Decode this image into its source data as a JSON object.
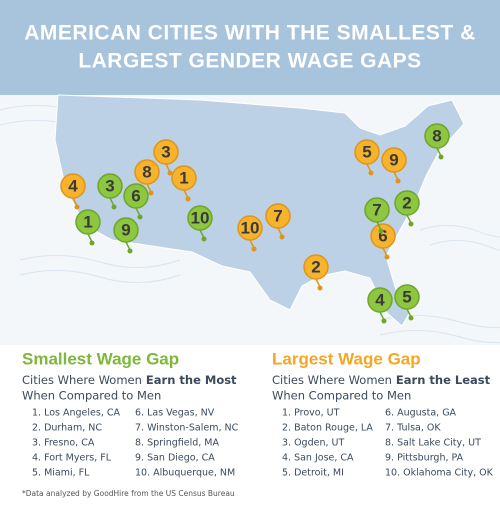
{
  "header": {
    "title_lines": [
      "AMERICAN CITIES WITH THE SMALLEST &",
      "LARGEST GENDER WAGE GAPS"
    ]
  },
  "map": {
    "smallest_pins": [
      "1",
      "2",
      "3",
      "4",
      "5",
      "6",
      "7",
      "8",
      "9",
      "10"
    ],
    "largest_pins": [
      "1",
      "2",
      "3",
      "4",
      "5",
      "6",
      "7",
      "8",
      "9",
      "10"
    ]
  },
  "lists": [
    {
      "heading": "Smallest Wage Gap",
      "subtitle": [
        "Cities Where Women",
        "Earn the Most",
        "When Compared to Men"
      ],
      "cities": [
        "1. Los Angeles, CA",
        "2. Durham, NC",
        "3. Fresno, CA",
        "4. Fort Myers, FL",
        "5. Miami, FL",
        "6. Las Vegas, NV",
        "7. Winston-Salem, NC",
        "8. Springfield, MA",
        "9. San Diego, CA",
        "10. Albuquerque, NM"
      ]
    },
    {
      "heading": "Largest Wage Gap",
      "subtitle": [
        "Cities Where Women",
        "Earn the Least",
        "When Compared to Men"
      ],
      "cities": [
        "1. Provo, UT",
        "2. Baton Rouge, LA",
        "3. Ogden, UT",
        "4. San Jose, CA",
        "5. Detroit, MI",
        "6. Augusta, GA",
        "7. Tulsa, OK",
        "8. Salt Lake City, UT",
        "9. Pittsburgh, PA",
        "10. Oklahoma City, OK"
      ]
    }
  ],
  "footnote": "*Data analyzed by GoodHire from the US Census Bureau"
}
